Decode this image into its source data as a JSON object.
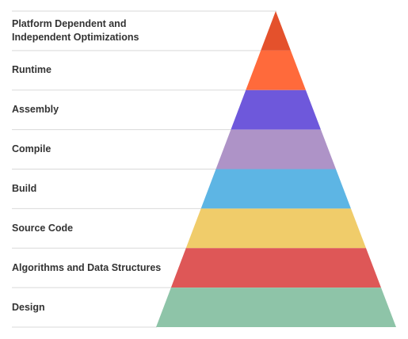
{
  "diagram": {
    "type": "pyramid",
    "tiers": [
      {
        "label": "Platform Dependent and Independent Optimizations",
        "color": "#E4512C"
      },
      {
        "label": "Runtime",
        "color": "#FF6A3B"
      },
      {
        "label": "Assembly",
        "color": "#6E58DB"
      },
      {
        "label": "Compile",
        "color": "#AE93C7"
      },
      {
        "label": "Build",
        "color": "#5DB5E4"
      },
      {
        "label": "Source Code",
        "color": "#F0CC6A"
      },
      {
        "label": "Algorithms and Data Structures",
        "color": "#DE5757"
      },
      {
        "label": "Design",
        "color": "#8EC4A8"
      }
    ],
    "divider_color": "#D9D9D9"
  }
}
